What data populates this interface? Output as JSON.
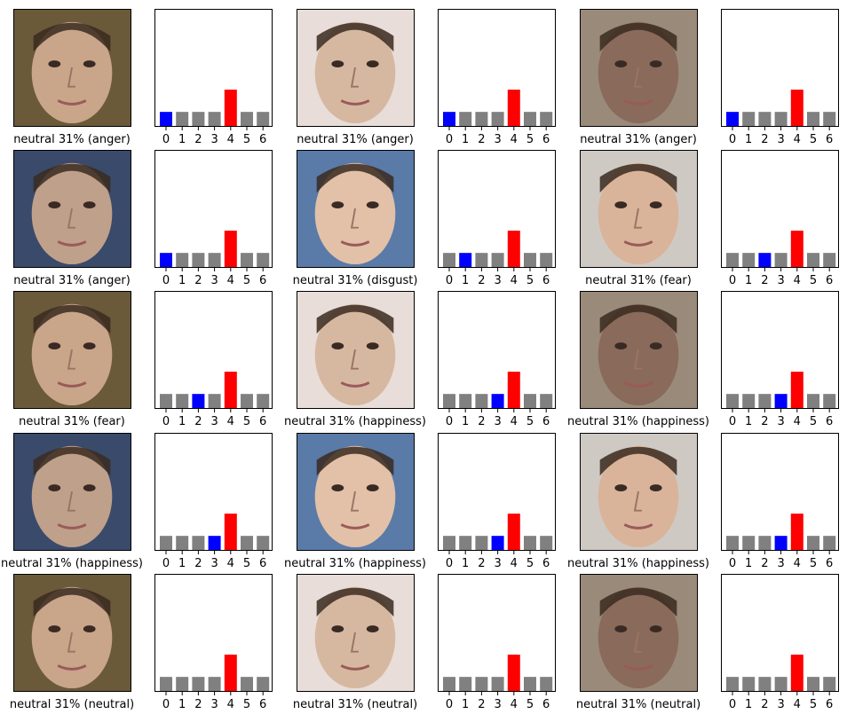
{
  "colors": {
    "prediction": "#ff0000",
    "true_label": "#0000ff",
    "other": "#808080"
  },
  "panels": [
    {
      "caption": "neutral 31% (anger)",
      "photo_icon": "face-photo-icon",
      "chart_data": {
        "type": "bar",
        "categories": [
          "0",
          "1",
          "2",
          "3",
          "4",
          "5",
          "6"
        ],
        "values": [
          0.12,
          0.12,
          0.12,
          0.12,
          0.31,
          0.12,
          0.12
        ],
        "ylim": [
          0,
          1
        ],
        "predicted": 4,
        "true": 0,
        "xlabel": "",
        "ylabel": ""
      }
    },
    {
      "caption": "neutral 31% (anger)",
      "photo_icon": "face-photo-icon",
      "chart_data": {
        "type": "bar",
        "categories": [
          "0",
          "1",
          "2",
          "3",
          "4",
          "5",
          "6"
        ],
        "values": [
          0.12,
          0.12,
          0.12,
          0.12,
          0.31,
          0.12,
          0.12
        ],
        "ylim": [
          0,
          1
        ],
        "predicted": 4,
        "true": 0,
        "xlabel": "",
        "ylabel": ""
      }
    },
    {
      "caption": "neutral 31% (anger)",
      "photo_icon": "face-photo-icon",
      "chart_data": {
        "type": "bar",
        "categories": [
          "0",
          "1",
          "2",
          "3",
          "4",
          "5",
          "6"
        ],
        "values": [
          0.12,
          0.12,
          0.12,
          0.12,
          0.31,
          0.12,
          0.12
        ],
        "ylim": [
          0,
          1
        ],
        "predicted": 4,
        "true": 0,
        "xlabel": "",
        "ylabel": ""
      }
    },
    {
      "caption": "neutral 31% (anger)",
      "photo_icon": "face-photo-icon",
      "chart_data": {
        "type": "bar",
        "categories": [
          "0",
          "1",
          "2",
          "3",
          "4",
          "5",
          "6"
        ],
        "values": [
          0.12,
          0.12,
          0.12,
          0.12,
          0.31,
          0.12,
          0.12
        ],
        "ylim": [
          0,
          1
        ],
        "predicted": 4,
        "true": 0,
        "xlabel": "",
        "ylabel": ""
      }
    },
    {
      "caption": "neutral 31% (disgust)",
      "photo_icon": "face-photo-icon",
      "chart_data": {
        "type": "bar",
        "categories": [
          "0",
          "1",
          "2",
          "3",
          "4",
          "5",
          "6"
        ],
        "values": [
          0.12,
          0.12,
          0.12,
          0.12,
          0.31,
          0.12,
          0.12
        ],
        "ylim": [
          0,
          1
        ],
        "predicted": 4,
        "true": 1,
        "xlabel": "",
        "ylabel": ""
      }
    },
    {
      "caption": "neutral 31% (fear)",
      "photo_icon": "face-photo-icon",
      "chart_data": {
        "type": "bar",
        "categories": [
          "0",
          "1",
          "2",
          "3",
          "4",
          "5",
          "6"
        ],
        "values": [
          0.12,
          0.12,
          0.12,
          0.12,
          0.31,
          0.12,
          0.12
        ],
        "ylim": [
          0,
          1
        ],
        "predicted": 4,
        "true": 2,
        "xlabel": "",
        "ylabel": ""
      }
    },
    {
      "caption": "neutral 31% (fear)",
      "photo_icon": "face-photo-icon",
      "chart_data": {
        "type": "bar",
        "categories": [
          "0",
          "1",
          "2",
          "3",
          "4",
          "5",
          "6"
        ],
        "values": [
          0.12,
          0.12,
          0.12,
          0.12,
          0.31,
          0.12,
          0.12
        ],
        "ylim": [
          0,
          1
        ],
        "predicted": 4,
        "true": 2,
        "xlabel": "",
        "ylabel": ""
      }
    },
    {
      "caption": "neutral 31% (happiness)",
      "photo_icon": "face-photo-icon",
      "chart_data": {
        "type": "bar",
        "categories": [
          "0",
          "1",
          "2",
          "3",
          "4",
          "5",
          "6"
        ],
        "values": [
          0.12,
          0.12,
          0.12,
          0.12,
          0.31,
          0.12,
          0.12
        ],
        "ylim": [
          0,
          1
        ],
        "predicted": 4,
        "true": 3,
        "xlabel": "",
        "ylabel": ""
      }
    },
    {
      "caption": "neutral 31% (happiness)",
      "photo_icon": "face-photo-icon",
      "chart_data": {
        "type": "bar",
        "categories": [
          "0",
          "1",
          "2",
          "3",
          "4",
          "5",
          "6"
        ],
        "values": [
          0.12,
          0.12,
          0.12,
          0.12,
          0.31,
          0.12,
          0.12
        ],
        "ylim": [
          0,
          1
        ],
        "predicted": 4,
        "true": 3,
        "xlabel": "",
        "ylabel": ""
      }
    },
    {
      "caption": "neutral 31% (happiness)",
      "photo_icon": "face-photo-icon",
      "chart_data": {
        "type": "bar",
        "categories": [
          "0",
          "1",
          "2",
          "3",
          "4",
          "5",
          "6"
        ],
        "values": [
          0.12,
          0.12,
          0.12,
          0.12,
          0.31,
          0.12,
          0.12
        ],
        "ylim": [
          0,
          1
        ],
        "predicted": 4,
        "true": 3,
        "xlabel": "",
        "ylabel": ""
      }
    },
    {
      "caption": "neutral 31% (happiness)",
      "photo_icon": "face-photo-icon",
      "chart_data": {
        "type": "bar",
        "categories": [
          "0",
          "1",
          "2",
          "3",
          "4",
          "5",
          "6"
        ],
        "values": [
          0.12,
          0.12,
          0.12,
          0.12,
          0.31,
          0.12,
          0.12
        ],
        "ylim": [
          0,
          1
        ],
        "predicted": 4,
        "true": 3,
        "xlabel": "",
        "ylabel": ""
      }
    },
    {
      "caption": "neutral 31% (happiness)",
      "photo_icon": "face-photo-icon",
      "chart_data": {
        "type": "bar",
        "categories": [
          "0",
          "1",
          "2",
          "3",
          "4",
          "5",
          "6"
        ],
        "values": [
          0.12,
          0.12,
          0.12,
          0.12,
          0.31,
          0.12,
          0.12
        ],
        "ylim": [
          0,
          1
        ],
        "predicted": 4,
        "true": 3,
        "xlabel": "",
        "ylabel": ""
      }
    },
    {
      "caption": "neutral 31% (neutral)",
      "photo_icon": "face-photo-icon",
      "chart_data": {
        "type": "bar",
        "categories": [
          "0",
          "1",
          "2",
          "3",
          "4",
          "5",
          "6"
        ],
        "values": [
          0.12,
          0.12,
          0.12,
          0.12,
          0.31,
          0.12,
          0.12
        ],
        "ylim": [
          0,
          1
        ],
        "predicted": 4,
        "true": 4,
        "xlabel": "",
        "ylabel": ""
      }
    },
    {
      "caption": "neutral 31% (neutral)",
      "photo_icon": "face-photo-icon",
      "chart_data": {
        "type": "bar",
        "categories": [
          "0",
          "1",
          "2",
          "3",
          "4",
          "5",
          "6"
        ],
        "values": [
          0.12,
          0.12,
          0.12,
          0.12,
          0.31,
          0.12,
          0.12
        ],
        "ylim": [
          0,
          1
        ],
        "predicted": 4,
        "true": 4,
        "xlabel": "",
        "ylabel": ""
      }
    },
    {
      "caption": "neutral 31% (neutral)",
      "photo_icon": "face-photo-icon",
      "chart_data": {
        "type": "bar",
        "categories": [
          "0",
          "1",
          "2",
          "3",
          "4",
          "5",
          "6"
        ],
        "values": [
          0.12,
          0.12,
          0.12,
          0.12,
          0.31,
          0.12,
          0.12
        ],
        "ylim": [
          0,
          1
        ],
        "predicted": 4,
        "true": 4,
        "xlabel": "",
        "ylabel": ""
      }
    }
  ]
}
